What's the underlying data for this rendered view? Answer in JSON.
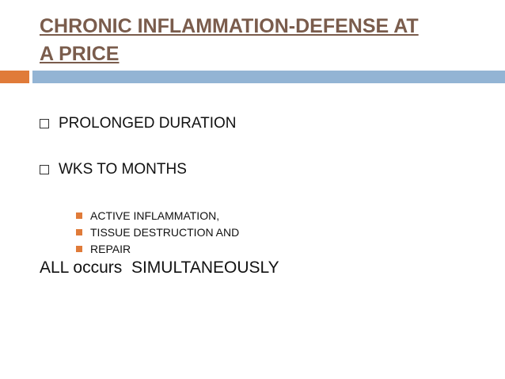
{
  "slide": {
    "title_line1": "CHRONIC INFLAMMATION-DEFENSE AT",
    "title_line2": "A PRICE",
    "bullets": [
      "PROLONGED DURATION",
      "WKS TO MONTHS"
    ],
    "sub_bullets": [
      "ACTIVE INFLAMMATION,",
      "TISSUE DESTRUCTION AND",
      "REPAIR"
    ],
    "closing": "ALL occurs  SIMULTANEOUSLY"
  },
  "colors": {
    "title": "#7a5c4c",
    "accent_orange": "#e07b39",
    "accent_blue": "#93b4d4"
  },
  "icons": {
    "level1_bullet": "hollow-square-bullet-icon",
    "level2_bullet": "filled-square-bullet-icon"
  }
}
